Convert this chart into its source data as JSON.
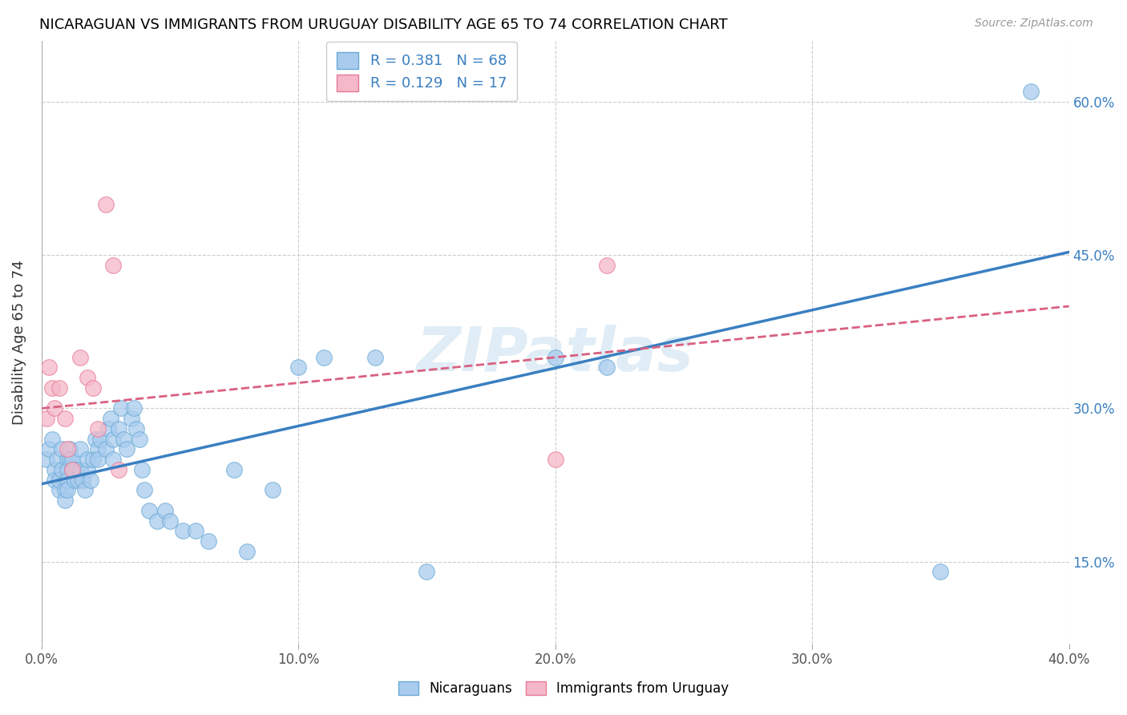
{
  "title": "NICARAGUAN VS IMMIGRANTS FROM URUGUAY DISABILITY AGE 65 TO 74 CORRELATION CHART",
  "source": "Source: ZipAtlas.com",
  "ylabel": "Disability Age 65 to 74",
  "xlim": [
    0.0,
    0.4
  ],
  "ylim": [
    0.07,
    0.66
  ],
  "blue_color": "#A8CBEE",
  "pink_color": "#F5B8C8",
  "blue_edge_color": "#6AAAD4",
  "pink_edge_color": "#E87898",
  "blue_line_color": "#3A7FC1",
  "pink_line_color": "#D96080",
  "legend_blue_text": "R = 0.381   N = 68",
  "legend_pink_text": "R = 0.129   N = 17",
  "watermark": "ZIPatlas",
  "xtick_vals": [
    0.0,
    0.1,
    0.2,
    0.3,
    0.4
  ],
  "xtick_labels": [
    "0.0%",
    "10.0%",
    "20.0%",
    "30.0%",
    "40.0%"
  ],
  "ytick_vals": [
    0.15,
    0.3,
    0.45,
    0.6
  ],
  "ytick_labels": [
    "15.0%",
    "30.0%",
    "45.0%",
    "60.0%"
  ],
  "blue_scatter_x": [
    0.002,
    0.003,
    0.004,
    0.005,
    0.005,
    0.006,
    0.007,
    0.007,
    0.008,
    0.008,
    0.009,
    0.009,
    0.01,
    0.01,
    0.01,
    0.01,
    0.011,
    0.011,
    0.012,
    0.012,
    0.013,
    0.013,
    0.014,
    0.015,
    0.015,
    0.016,
    0.017,
    0.018,
    0.018,
    0.019,
    0.02,
    0.021,
    0.022,
    0.022,
    0.023,
    0.025,
    0.026,
    0.027,
    0.028,
    0.028,
    0.03,
    0.031,
    0.032,
    0.033,
    0.035,
    0.036,
    0.037,
    0.038,
    0.039,
    0.04,
    0.042,
    0.045,
    0.048,
    0.05,
    0.055,
    0.06,
    0.065,
    0.075,
    0.08,
    0.09,
    0.1,
    0.11,
    0.13,
    0.15,
    0.2,
    0.22,
    0.35,
    0.385
  ],
  "blue_scatter_y": [
    0.25,
    0.26,
    0.27,
    0.24,
    0.23,
    0.25,
    0.22,
    0.23,
    0.24,
    0.26,
    0.22,
    0.21,
    0.25,
    0.24,
    0.23,
    0.22,
    0.26,
    0.25,
    0.25,
    0.24,
    0.24,
    0.23,
    0.23,
    0.26,
    0.24,
    0.23,
    0.22,
    0.24,
    0.25,
    0.23,
    0.25,
    0.27,
    0.26,
    0.25,
    0.27,
    0.26,
    0.28,
    0.29,
    0.27,
    0.25,
    0.28,
    0.3,
    0.27,
    0.26,
    0.29,
    0.3,
    0.28,
    0.27,
    0.24,
    0.22,
    0.2,
    0.19,
    0.2,
    0.19,
    0.18,
    0.18,
    0.17,
    0.24,
    0.16,
    0.22,
    0.34,
    0.35,
    0.35,
    0.14,
    0.35,
    0.34,
    0.14,
    0.61
  ],
  "pink_scatter_x": [
    0.002,
    0.003,
    0.004,
    0.005,
    0.007,
    0.009,
    0.01,
    0.012,
    0.015,
    0.018,
    0.02,
    0.022,
    0.025,
    0.028,
    0.03,
    0.2,
    0.22
  ],
  "pink_scatter_y": [
    0.29,
    0.34,
    0.32,
    0.3,
    0.32,
    0.29,
    0.26,
    0.24,
    0.35,
    0.33,
    0.32,
    0.28,
    0.5,
    0.44,
    0.24,
    0.25,
    0.44
  ],
  "blue_line_x0": 0.0,
  "blue_line_x1": 0.4,
  "blue_line_y0": 0.226,
  "blue_line_y1": 0.453,
  "pink_line_x0": 0.0,
  "pink_line_x1": 0.4,
  "pink_line_y0": 0.3,
  "pink_line_y1": 0.4
}
